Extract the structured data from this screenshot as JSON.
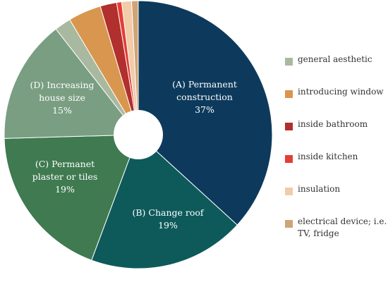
{
  "chart_data": {
    "type": "pie",
    "donut": true,
    "title": "",
    "slices": [
      {
        "key": "a",
        "label_lines": [
          "(A) Permanent",
          "construction",
          "37%"
        ],
        "value": 37,
        "color": "#0d3a5c"
      },
      {
        "key": "b",
        "label_lines": [
          "(B) Change roof",
          "19%"
        ],
        "value": 19,
        "color": "#0e5a5b"
      },
      {
        "key": "c",
        "label_lines": [
          "(C) Permanet",
          "plaster or tiles",
          "19%"
        ],
        "value": 19,
        "color": "#3f7a50"
      },
      {
        "key": "d",
        "label_lines": [
          "(D) Increasing",
          "house size",
          "15%"
        ],
        "value": 15,
        "color": "#7a9e82"
      },
      {
        "key": "general_aesthetic",
        "label_lines": [],
        "value": 2,
        "color": "#a9b99f"
      },
      {
        "key": "introducing_window",
        "label_lines": [],
        "value": 4,
        "color": "#d9964f"
      },
      {
        "key": "inside_bathroom",
        "label_lines": [],
        "value": 2,
        "color": "#b12f2c"
      },
      {
        "key": "inside_kitchen",
        "label_lines": [],
        "value": 0.6,
        "color": "#e53d36"
      },
      {
        "key": "insulation",
        "label_lines": [],
        "value": 1.2,
        "color": "#f2cba8"
      },
      {
        "key": "electrical_device",
        "label_lines": [],
        "value": 0.8,
        "color": "#cfa477"
      }
    ],
    "legend": [
      {
        "label": "general aesthetic",
        "color": "#a9b99f"
      },
      {
        "label": "introducing window",
        "color": "#d9964f"
      },
      {
        "label": "inside bathroom",
        "color": "#b12f2c"
      },
      {
        "label": "inside kitchen",
        "color": "#e53d36"
      },
      {
        "label": "insulation",
        "color": "#f2cba8"
      },
      {
        "label": "electrical device; i.e. TV, fridge",
        "color": "#cfa477"
      }
    ],
    "legend_position": "right"
  }
}
